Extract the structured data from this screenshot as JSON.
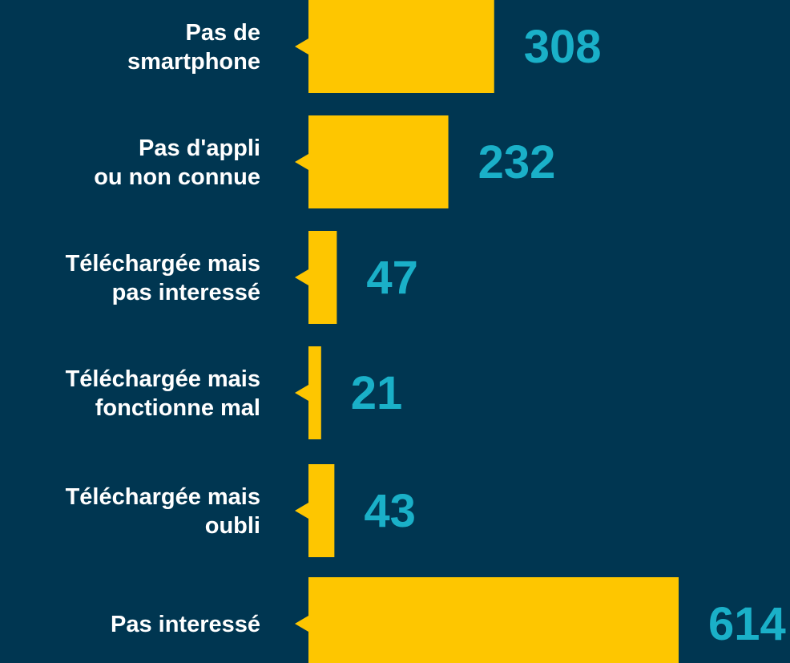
{
  "chart_data": {
    "type": "bar",
    "orientation": "horizontal",
    "categories": [
      [
        "Pas de",
        "smartphone"
      ],
      [
        "Pas d'appli",
        "ou non connue"
      ],
      [
        "Téléchargée mais",
        "pas interessé"
      ],
      [
        "Téléchargée mais",
        "fonctionne mal"
      ],
      [
        "Téléchargée mais",
        "oubli"
      ],
      [
        "Pas interessé"
      ]
    ],
    "values": [
      308,
      232,
      47,
      21,
      43,
      614
    ],
    "color": "#fec600",
    "value_label_color": "#1ab0c8",
    "background": "#003651"
  }
}
